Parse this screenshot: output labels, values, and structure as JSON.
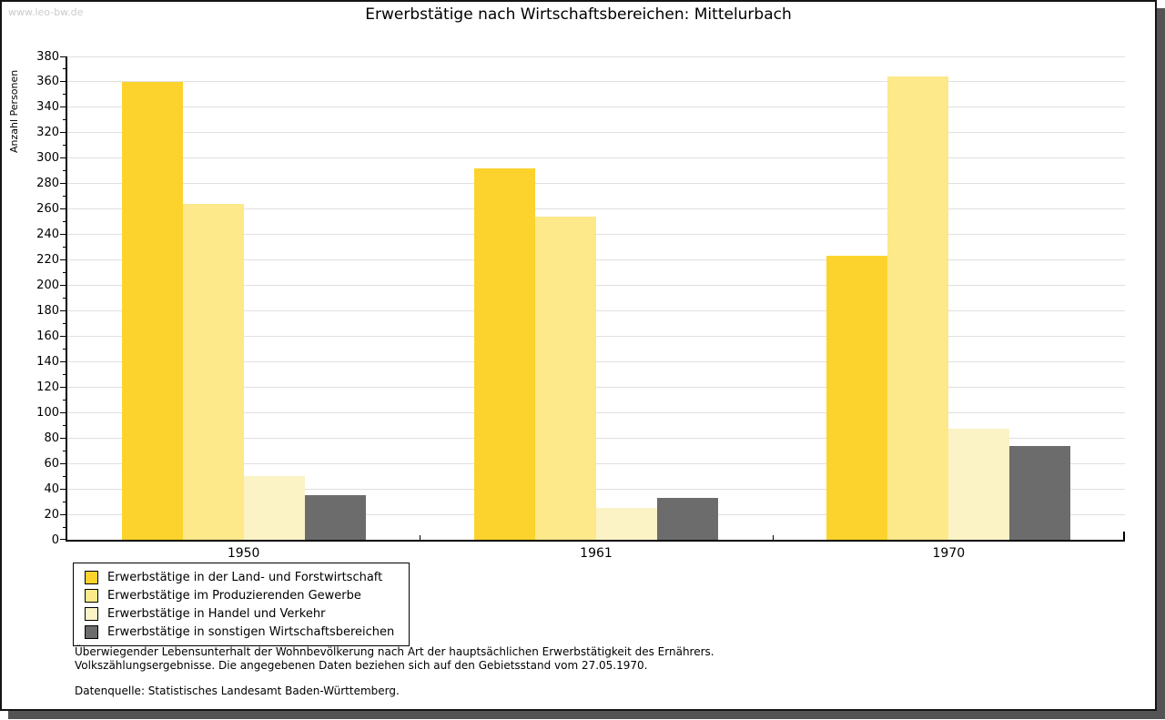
{
  "watermark": "www.leo-bw.de",
  "title": "Erwerbstätige nach Wirtschaftsbereichen: Mittelurbach",
  "chart_data": {
    "type": "bar",
    "title": "Erwerbstätige nach Wirtschaftsbereichen: Mittelurbach",
    "ylabel": "Anzahl Personen",
    "xlabel": "",
    "categories": [
      "1950",
      "1961",
      "1970"
    ],
    "series": [
      {
        "name": "Erwerbstätige in der Land- und Forstwirtschaft",
        "color": "#fcd32d",
        "values": [
          360,
          292,
          223
        ]
      },
      {
        "name": "Erwerbstätige im Produzierenden Gewerbe",
        "color": "#fde88a",
        "values": [
          264,
          254,
          364
        ]
      },
      {
        "name": "Erwerbstätige in Handel und Verkehr",
        "color": "#fbf3c6",
        "values": [
          50,
          25,
          87
        ]
      },
      {
        "name": "Erwerbstätige in sonstigen Wirtschaftsbereichen",
        "color": "#6c6c6c",
        "values": [
          35,
          33,
          74
        ]
      }
    ],
    "ylim": [
      0,
      380
    ],
    "ytick_step": 20,
    "yminor_step": 10,
    "grid": true,
    "legend_position": "bottom-left"
  },
  "footer": {
    "note_line1": "Überwiegender Lebensunterhalt der Wohnbevölkerung nach Art der hauptsächlichen Erwerbstätigkeit des Ernährers.",
    "note_line2": "Volkszählungsergebnisse. Die angegebenen Daten beziehen sich auf den Gebietsstand vom 27.05.1970.",
    "source": "Datenquelle: Statistisches Landesamt Baden-Württemberg."
  },
  "colors": {
    "grid": "#e0e0e0",
    "axis": "#000000",
    "watermark": "#cccccc",
    "shadow": "#545454",
    "background": "#ffffff"
  }
}
